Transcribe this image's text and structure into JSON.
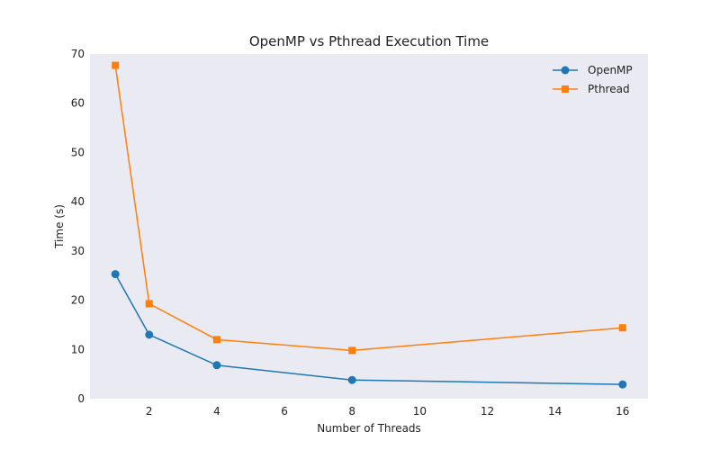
{
  "chart_data": {
    "type": "line",
    "title": "OpenMP vs Pthread Execution Time",
    "xlabel": "Number of Threads",
    "ylabel": "Time (s)",
    "xlim": [
      0.25,
      16.75
    ],
    "ylim": [
      0,
      70
    ],
    "xticks": [
      2,
      4,
      6,
      8,
      10,
      12,
      14,
      16
    ],
    "yticks": [
      0,
      10,
      20,
      30,
      40,
      50,
      60,
      70
    ],
    "grid": false,
    "legend_position": "top-right",
    "x": [
      1,
      2,
      4,
      8,
      16
    ],
    "series": [
      {
        "name": "OpenMP",
        "values": [
          25.3,
          13.0,
          6.8,
          3.8,
          2.9
        ],
        "color": "#1f77b4",
        "marker": "circle"
      },
      {
        "name": "Pthread",
        "values": [
          67.7,
          19.3,
          12.0,
          9.8,
          14.4
        ],
        "color": "#ff7f0e",
        "marker": "square"
      }
    ]
  },
  "style": {
    "plot_background": "#eaeaf2"
  }
}
